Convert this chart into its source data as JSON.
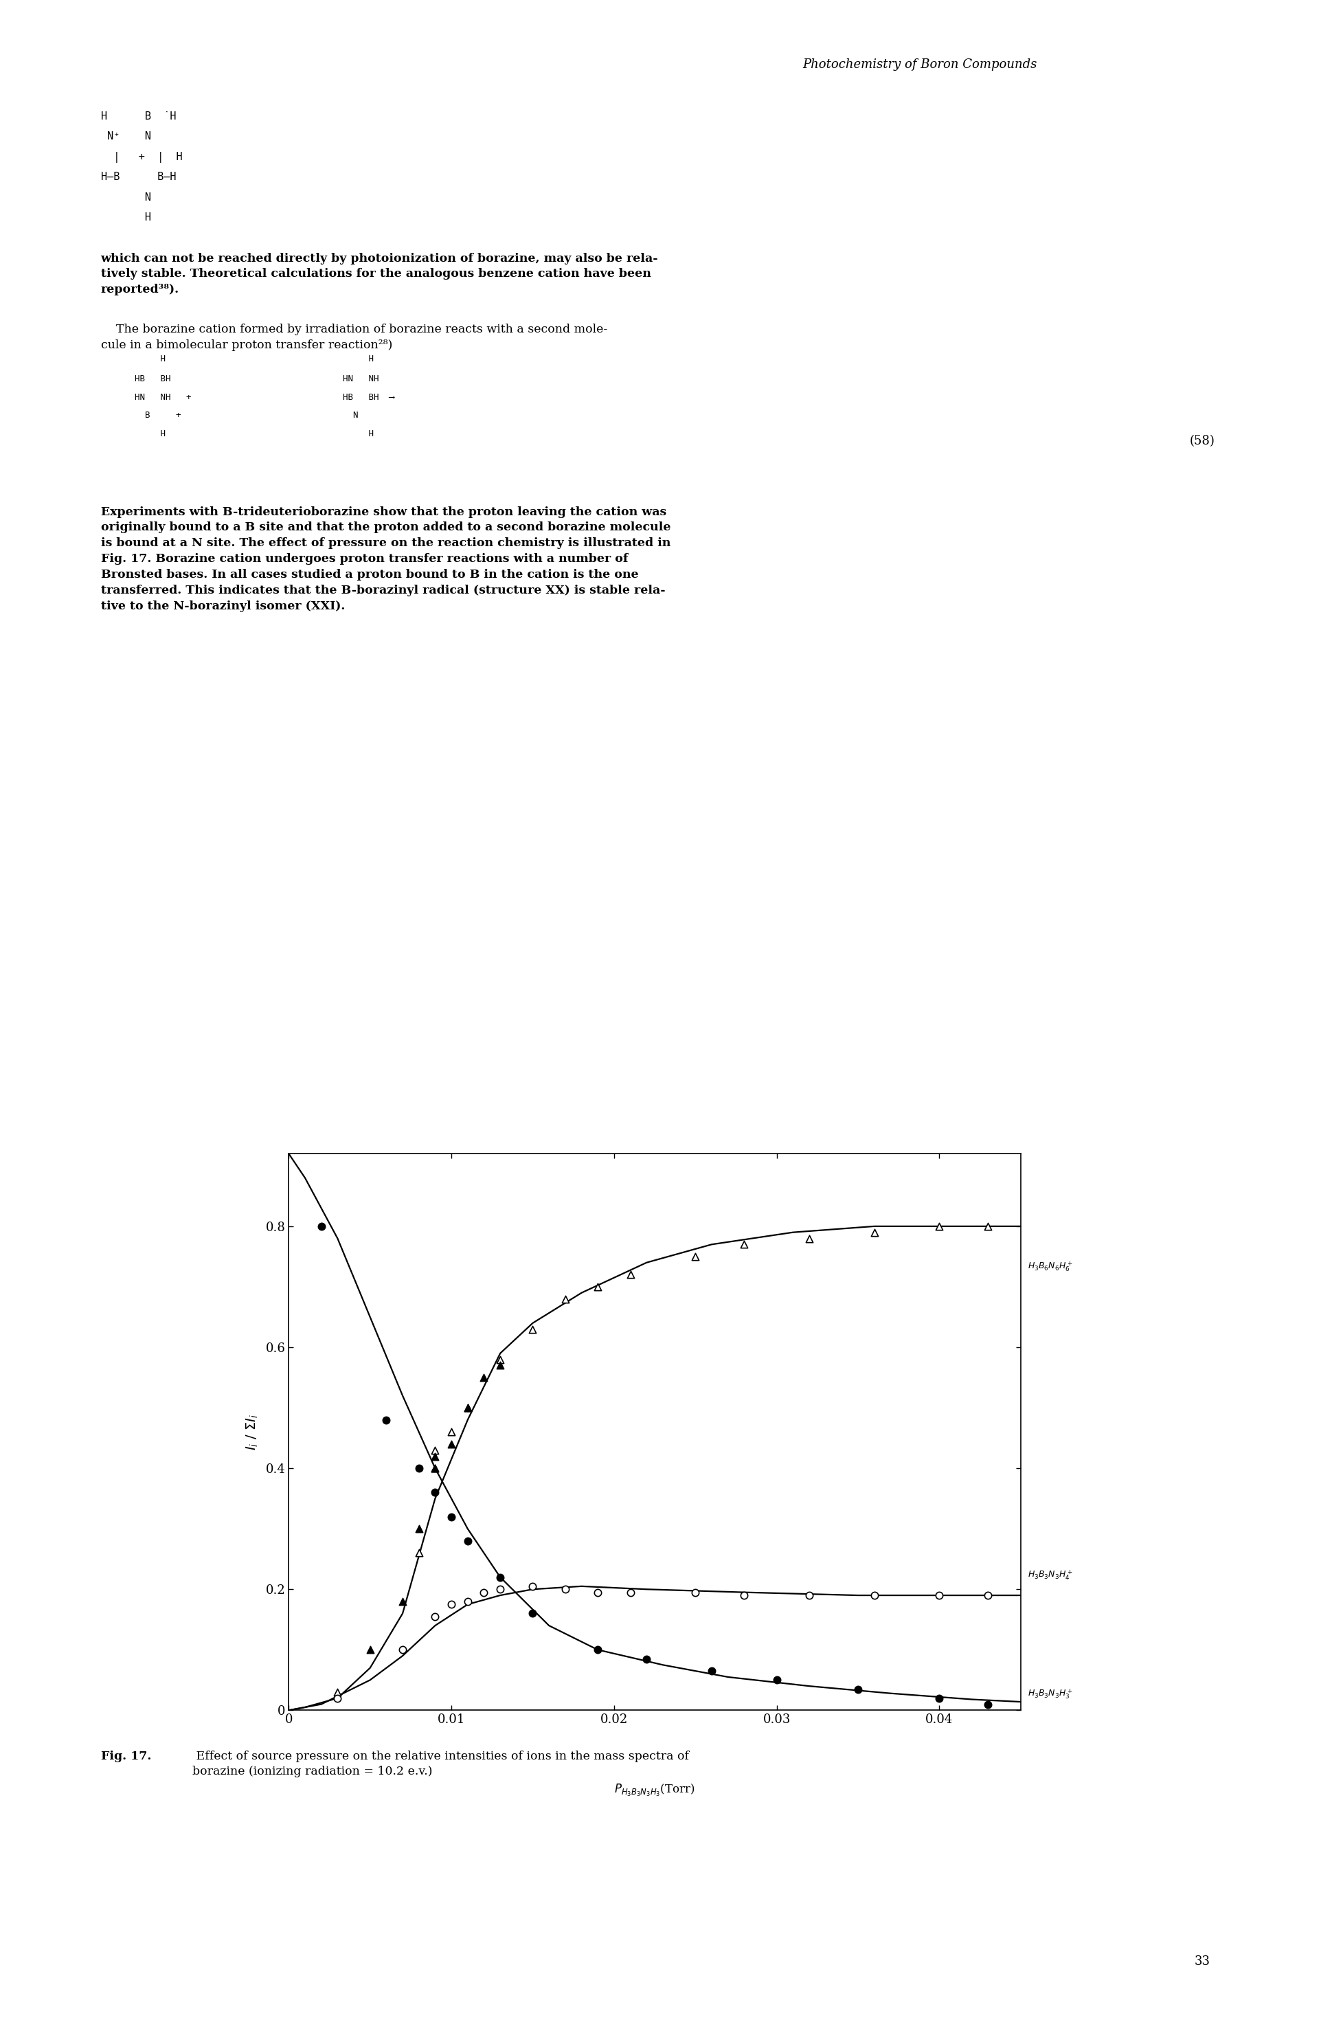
{
  "header_text": "Photochemistry of Boron Compounds",
  "page_number": "33",
  "ylabel": "$I_i\\ /\\ \\Sigma I_i$",
  "xlabel_main": "$P_{H_3B_3N_3H_3}$",
  "xlabel_units": "(Torr)",
  "xlim": [
    0,
    0.045
  ],
  "ylim": [
    0,
    0.92
  ],
  "xticks": [
    0,
    0.01,
    0.02,
    0.03,
    0.04
  ],
  "yticks": [
    0,
    0.2,
    0.4,
    0.6,
    0.8
  ],
  "label_tri": "$H_3B_6N_6H_6^+$",
  "label_co": "$H_3B_3N_3H_4^+$",
  "label_cf": "$H_3B_3N_3H_3^+$",
  "triangle_open_x": [
    0.003,
    0.008,
    0.009,
    0.009,
    0.01,
    0.011,
    0.013,
    0.015,
    0.017,
    0.019,
    0.021,
    0.025,
    0.028,
    0.032,
    0.036,
    0.04,
    0.043
  ],
  "triangle_open_y": [
    0.03,
    0.26,
    0.4,
    0.43,
    0.46,
    0.5,
    0.58,
    0.63,
    0.68,
    0.7,
    0.72,
    0.75,
    0.77,
    0.78,
    0.79,
    0.8,
    0.8
  ],
  "triangle_filled_x": [
    0.005,
    0.007,
    0.008,
    0.009,
    0.009,
    0.01,
    0.011,
    0.012,
    0.013
  ],
  "triangle_filled_y": [
    0.1,
    0.18,
    0.3,
    0.4,
    0.42,
    0.44,
    0.5,
    0.55,
    0.57
  ],
  "circle_open_x": [
    0.003,
    0.007,
    0.009,
    0.01,
    0.011,
    0.012,
    0.013,
    0.015,
    0.017,
    0.019,
    0.021,
    0.025,
    0.028,
    0.032,
    0.036,
    0.04,
    0.043
  ],
  "circle_open_y": [
    0.02,
    0.1,
    0.155,
    0.175,
    0.18,
    0.195,
    0.2,
    0.205,
    0.2,
    0.195,
    0.195,
    0.195,
    0.19,
    0.19,
    0.19,
    0.19,
    0.19
  ],
  "circle_filled_x": [
    0.002,
    0.006,
    0.008,
    0.009,
    0.01,
    0.011,
    0.013,
    0.015,
    0.019,
    0.022,
    0.026,
    0.03,
    0.035,
    0.04,
    0.043
  ],
  "circle_filled_y": [
    0.8,
    0.48,
    0.4,
    0.36,
    0.32,
    0.28,
    0.22,
    0.16,
    0.1,
    0.085,
    0.065,
    0.05,
    0.035,
    0.02,
    0.01
  ],
  "curve_tri_x": [
    0.0,
    0.001,
    0.003,
    0.005,
    0.007,
    0.009,
    0.011,
    0.013,
    0.015,
    0.018,
    0.022,
    0.026,
    0.031,
    0.036,
    0.041,
    0.045
  ],
  "curve_tri_y": [
    0.0,
    0.005,
    0.02,
    0.07,
    0.16,
    0.35,
    0.48,
    0.59,
    0.64,
    0.69,
    0.74,
    0.77,
    0.79,
    0.8,
    0.8,
    0.8
  ],
  "curve_co_x": [
    0.0,
    0.002,
    0.005,
    0.007,
    0.009,
    0.011,
    0.013,
    0.015,
    0.018,
    0.022,
    0.028,
    0.035,
    0.042,
    0.045
  ],
  "curve_co_y": [
    0.0,
    0.01,
    0.05,
    0.09,
    0.14,
    0.175,
    0.19,
    0.2,
    0.205,
    0.2,
    0.195,
    0.19,
    0.19,
    0.19
  ],
  "curve_cf_x": [
    0.0,
    0.001,
    0.003,
    0.005,
    0.007,
    0.009,
    0.011,
    0.013,
    0.016,
    0.019,
    0.023,
    0.027,
    0.032,
    0.037,
    0.042,
    0.045
  ],
  "curve_cf_y": [
    0.92,
    0.88,
    0.78,
    0.65,
    0.52,
    0.4,
    0.3,
    0.22,
    0.14,
    0.1,
    0.075,
    0.055,
    0.04,
    0.028,
    0.018,
    0.014
  ]
}
